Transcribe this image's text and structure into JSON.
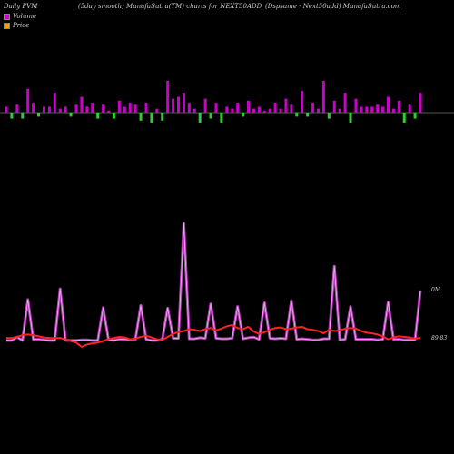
{
  "header": {
    "left": "Daily PVM",
    "middle": "(5day smooth) MunafaSutra(TM) charts for NEXT50ADD",
    "right": "(Dspsame - Next50add) MunafaSutra.com"
  },
  "legend": {
    "volume_label": "Volume",
    "price_label": "Price",
    "volume_color": "#cc00cc",
    "price_color": "#ff9900"
  },
  "axis": {
    "volume_tick": "0M",
    "price_tick": "89.83"
  },
  "chart_data": {
    "type": "bar",
    "panels": [
      "volume",
      "price"
    ],
    "volume_series": {
      "name": "Volume",
      "values": [
        3,
        -3,
        4,
        -3,
        12,
        5,
        -2,
        3,
        3,
        10,
        2,
        3,
        -2,
        4,
        8,
        3,
        5,
        -3,
        4,
        1,
        -3,
        6,
        3,
        5,
        4,
        -4,
        5,
        -5,
        2,
        -4,
        16,
        7,
        8,
        10,
        5,
        2,
        -5,
        7,
        -3,
        5,
        -5,
        3,
        2,
        5,
        -2,
        6,
        2,
        3,
        1,
        2,
        5,
        2,
        7,
        4,
        -2,
        11,
        -2,
        5,
        2,
        16,
        -3,
        6,
        2,
        10,
        -5,
        7,
        3,
        3,
        3,
        4,
        3,
        8,
        2,
        6,
        -5,
        4,
        -3,
        10
      ],
      "positive_color": "#cc00cc",
      "negative_color": "#33cc33"
    },
    "price_series": {
      "name": "Price",
      "color": "#ff2222",
      "values": [
        89.83,
        89.8,
        90.0,
        90.3,
        90.4,
        90.3,
        90.1,
        89.9,
        89.8,
        89.8,
        89.8,
        89.6,
        89.3,
        89.0,
        88.3,
        88.7,
        88.9,
        89.0,
        89.3,
        89.6,
        89.8,
        90.0,
        89.9,
        89.6,
        89.7,
        90.0,
        90.2,
        89.9,
        89.6,
        89.5,
        90.0,
        90.5,
        90.8,
        91.0,
        91.3,
        91.2,
        91.0,
        91.3,
        91.5,
        91.1,
        91.4,
        91.8,
        92.0,
        91.5,
        91.3,
        91.7,
        90.9,
        90.5,
        90.8,
        91.2,
        91.5,
        91.6,
        91.3,
        91.4,
        91.6,
        91.7,
        91.3,
        91.2,
        91.0,
        90.6,
        91.2,
        91.0,
        91.1,
        91.4,
        91.5,
        91.4,
        91.0,
        90.7,
        90.6,
        90.4,
        90.1,
        89.6,
        89.9,
        90.1,
        90.0,
        89.9,
        89.7,
        89.83
      ]
    },
    "volume_line_series": {
      "name": "Volume",
      "color": "#cc44cc",
      "values": [
        0.2,
        0.2,
        0.8,
        0.2,
        7.8,
        0.4,
        0.4,
        0.3,
        0.2,
        0.2,
        9.8,
        0.2,
        0.2,
        0.2,
        0.3,
        0.3,
        0.2,
        0.2,
        6.3,
        0.3,
        0.2,
        0.4,
        0.4,
        0.3,
        0.4,
        6.7,
        0.4,
        0.2,
        0.2,
        0.4,
        6.2,
        0.6,
        0.6,
        22.0,
        0.5,
        0.5,
        0.7,
        0.6,
        7.0,
        0.6,
        0.5,
        0.5,
        0.6,
        6.5,
        0.5,
        0.7,
        0.8,
        0.4,
        7.2,
        0.6,
        0.5,
        0.6,
        0.5,
        7.6,
        0.4,
        0.5,
        0.4,
        0.3,
        0.3,
        0.5,
        0.5,
        14.0,
        0.3,
        0.4,
        6.5,
        0.4,
        0.4,
        0.4,
        0.4,
        0.3,
        0.4,
        7.3,
        0.4,
        0.4,
        0.3,
        0.3,
        0.3,
        9.5
      ]
    }
  }
}
